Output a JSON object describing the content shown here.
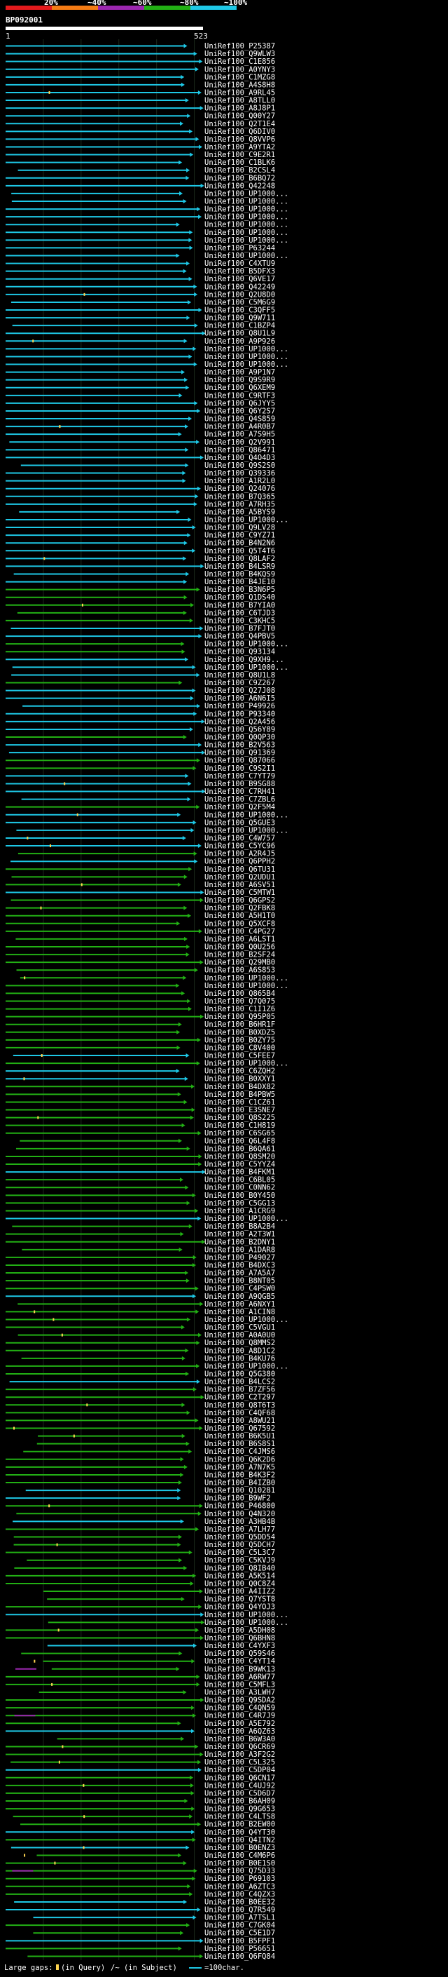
{
  "chart_data": {
    "type": "alignment-overview",
    "title": "BP092001",
    "query_start": "1",
    "query_end": "523",
    "query_length": 523,
    "identity_scale": [
      {
        "label": "20%",
        "color": "#e41a1c"
      },
      {
        "label": "~40%",
        "color": "#f57c14"
      },
      {
        "label": "~60%",
        "color": "#9c27b0"
      },
      {
        "label": "~80%",
        "color": "#22b014"
      },
      {
        "label": "~100%",
        "color": "#1ec8e6"
      }
    ],
    "legend_text": "Large gaps:",
    "legend_query_gap": "(in Query)",
    "legend_subject_gap": "/~ (in Subject)",
    "legend_scale": "=100char.",
    "hits": [
      "UniRef100_P25387",
      "UniRef100_Q9WLW3",
      "UniRef100_C1E856",
      "UniRef100_A0YNY3",
      "UniRef100_C1MZG8",
      "UniRef100_A4S8H8",
      "UniRef100_A9RL45",
      "UniRef100_A8TLL0",
      "UniRef100_A8J8P1",
      "UniRef100_Q00Y27",
      "UniRef100_Q2T1E4",
      "UniRef100_Q6DIV0",
      "UniRef100_Q8VVP6",
      "UniRef100_A9YTA2",
      "UniRef100_C9E2R1",
      "UniRef100_C1BLK6",
      "UniRef100_B2CSL4",
      "UniRef100_B6BQ72",
      "UniRef100_Q42248",
      "UniRef100_UP1000...",
      "UniRef100_UP1000...",
      "UniRef100_UP1000...",
      "UniRef100_UP1000...",
      "UniRef100_UP1000...",
      "UniRef100_UP1000...",
      "UniRef100_UP1000...",
      "UniRef100_P63244",
      "UniRef100_UP1000...",
      "UniRef100_C4XTU9",
      "UniRef100_B5DFX3",
      "UniRef100_Q6VE17",
      "UniRef100_Q42249",
      "UniRef100_Q2U8D0",
      "UniRef100_C5M6G9",
      "UniRef100_C3QFF5",
      "UniRef100_Q9W711",
      "UniRef100_C1BZP4",
      "UniRef100_Q8U1L9",
      "UniRef100_A9P926",
      "UniRef100_UP1000...",
      "UniRef100_UP1000...",
      "UniRef100_UP1000...",
      "UniRef100_A9P1N7",
      "UniRef100_Q9S9R9",
      "UniRef100_Q6XEM9",
      "UniRef100_C9RTF3",
      "UniRef100_Q6JYY5",
      "UniRef100_Q6Y2S7",
      "UniRef100_Q4S859",
      "UniRef100_A4R0B7",
      "UniRef100_A7S9H5",
      "UniRef100_Q2V991",
      "UniRef100_Q86471",
      "UniRef100_Q4O4D3",
      "UniRef100_Q9S2S0",
      "UniRef100_Q39336",
      "UniRef100_A1R2L0",
      "UniRef100_Q24076",
      "UniRef100_B7Q365",
      "UniRef100_A7RH35",
      "UniRef100_A5BYS9",
      "UniRef100_UP1000...",
      "UniRef100_Q9LV28",
      "UniRef100_C9YZ71",
      "UniRef100_B4N2N6",
      "UniRef100_Q5T4T6",
      "UniRef100_Q8LAF2",
      "UniRef100_B4LSR9",
      "UniRef100_B4KQS9",
      "UniRef100_B4JE10",
      "UniRef100_B3N6P5",
      "UniRef100_Q1DS40",
      "UniRef100_B7YIA0",
      "UniRef100_C6TJD3",
      "UniRef100_C3KHC5",
      "UniRef100_B7FJT0",
      "UniRef100_Q4PBV5",
      "UniRef100_UP1000...",
      "UniRef100_Q93134",
      "UniRef100_Q9XH9...",
      "UniRef100_UP1000...",
      "UniRef100_Q8U1L8",
      "UniRef100_C9Z267",
      "UniRef100_Q27J08",
      "UniRef100_A6N6I5",
      "UniRef100_P49926",
      "UniRef100_P93340",
      "UniRef100_Q2A456",
      "UniRef100_Q56Y89",
      "UniRef100_Q0QP30",
      "UniRef100_B2V563",
      "UniRef100_Q91369",
      "UniRef100_Q87066",
      "UniRef100_C9S2I1",
      "UniRef100_C7YT79",
      "UniRef100_B9SG88",
      "UniRef100_C7RH41",
      "UniRef100_C7ZBL6",
      "UniRef100_Q2F5M4",
      "UniRef100_UP1000...",
      "UniRef100_Q5GUE3",
      "UniRef100_UP1000...",
      "UniRef100_C4W757",
      "UniRef100_C5YC96",
      "UniRef100_A2R4J5",
      "UniRef100_Q6PPH2",
      "UniRef100_Q6TU31",
      "UniRef100_Q2UDU1",
      "UniRef100_A6SV51",
      "UniRef100_C5MTW1",
      "UniRef100_Q6GPS2",
      "UniRef100_Q2FBK8",
      "UniRef100_A5H1T0",
      "UniRef100_Q5XCF8",
      "UniRef100_C4PG27",
      "UniRef100_A6LST1",
      "UniRef100_Q0U256",
      "UniRef100_B2SF24",
      "UniRef100_Q29MB0",
      "UniRef100_A6S853",
      "UniRef100_UP1000...",
      "UniRef100_UP1000...",
      "UniRef100_Q865B4",
      "UniRef100_Q7Q075",
      "UniRef100_C1I1Z6",
      "UniRef100_Q95P05",
      "UniRef100_B6HR1F",
      "UniRef100_B0XDZ5",
      "UniRef100_B0ZY75",
      "UniRef100_C8V400",
      "UniRef100_C5FEE7",
      "UniRef100_UP1000...",
      "UniRef100_C6ZQH2",
      "UniRef100_B0XXY1",
      "UniRef100_B4DX82",
      "UniRef100_B4PBW5",
      "UniRef100_C1CZ61",
      "UniRef100_E3SNE7",
      "UniRef100_Q8S225",
      "UniRef100_C1H819",
      "UniRef100_C6SG65",
      "UniRef100_Q6L4F8",
      "UniRef100_B6QA61",
      "UniRef100_Q8SM20",
      "UniRef100_C5YYZ4",
      "UniRef100_B4FKM1",
      "UniRef100_C6BL05",
      "UniRef100_C0NN62",
      "UniRef100_B0Y450",
      "UniRef100_C5GG13",
      "UniRef100_A1CRG9",
      "UniRef100_UP1000...",
      "UniRef100_B8A2B4",
      "UniRef100_A2T3W1",
      "UniRef100_B2DNY1",
      "UniRef100_A1DAR8",
      "UniRef100_P49027",
      "UniRef100_B4DXC3",
      "UniRef100_A7A5A7",
      "UniRef100_B8NT05",
      "UniRef100_C4PSW0",
      "UniRef100_A9QGB5",
      "UniRef100_A6NXY1",
      "UniRef100_A1CIN8",
      "UniRef100_UP1000...",
      "UniRef100_C5VGU1",
      "UniRef100_A0A0U0",
      "UniRef100_Q8MMS2",
      "UniRef100_A8D1C2",
      "UniRef100_B4KU76",
      "UniRef100_UP1000...",
      "UniRef100_Q5G380",
      "UniRef100_B4LCS2",
      "UniRef100_B7ZF56",
      "UniRef100_C2T297",
      "UniRef100_Q8T6T3",
      "UniRef100_C4QF68",
      "UniRef100_A8WU21",
      "UniRef100_Q67592",
      "UniRef100_B6K5U1",
      "UniRef100_B6S8S1",
      "UniRef100_C4JMS6",
      "UniRef100_Q6K2D6",
      "UniRef100_A7N7K5",
      "UniRef100_B4K3F2",
      "UniRef100_B4IZB0",
      "UniRef100_Q10281",
      "UniRef100_B9WF2",
      "UniRef100_P46800",
      "UniRef100_Q4N320",
      "UniRef100_A3HB4B",
      "UniRef100_A7LH77",
      "UniRef100_Q5DD54",
      "UniRef100_Q5DCH7",
      "UniRef100_C5L3C7",
      "UniRef100_C5KVJ9",
      "UniRef100_Q8IB40",
      "UniRef100_A5K514",
      "UniRef100_Q0C8Z4",
      "UniRef100_A4IIZ2",
      "UniRef100_Q7YST8",
      "UniRef100_Q4YOJ3",
      "UniRef100_UP1000...",
      "UniRef100_UP1000...",
      "UniRef100_A5DH08",
      "UniRef100_Q6BHN8",
      "UniRef100_C4YXF3",
      "UniRef100_Q59S46",
      "UniRef100_C4YT14",
      "UniRef100_B9WK13",
      "UniRef100_A6RW77",
      "UniRef100_C5MFL3",
      "UniRef100_A3LWH7",
      "UniRef100_Q9SDA2",
      "UniRef100_C4QN59",
      "UniRef100_C4R7J9",
      "UniRef100_A5E792",
      "UniRef100_A6QZ63",
      "UniRef100_B6W3A0",
      "UniRef100_Q6CR69",
      "UniRef100_A3F2G2",
      "UniRef100_C5L325",
      "UniRef100_C5DP04",
      "UniRef100_Q6CN17",
      "UniRef100_C4UJ92",
      "UniRef100_C5D6D7",
      "UniRef100_B6AH09",
      "UniRef100_Q9G653",
      "UniRef100_C4LTS8",
      "UniRef100_B2EW00",
      "UniRef100_Q4YT30",
      "UniRef100_Q4ITN2",
      "UniRef100_B0ENZ3",
      "UniRef100_C4M6P6",
      "UniRef100_B0E1S0",
      "UniRef100_Q75D33",
      "UniRef100_P69103",
      "UniRef100_A6ZTC3",
      "UniRef100_C4QZX3",
      "UniRef100_B0EE32",
      "UniRef100_Q7R549",
      "UniRef100_A7TSL1",
      "UniRef100_C7GK04",
      "UniRef100_C5E1D7",
      "UniRef100_B5FPF1",
      "UniRef100_P56651",
      "UniRef100_Q6FQ84"
    ]
  }
}
